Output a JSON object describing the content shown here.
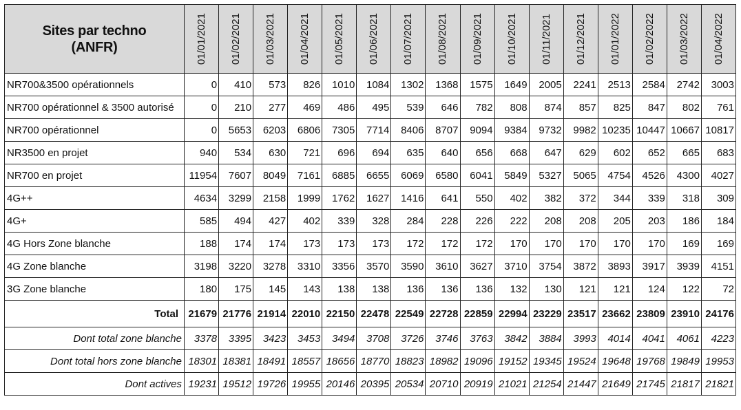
{
  "table": {
    "title": "Sites par techno\n(ANFR)",
    "columns": [
      "01/01/2021",
      "01/02/2021",
      "01/03/2021",
      "01/04/2021",
      "01/05/2021",
      "01/06/2021",
      "01/07/2021",
      "01/08/2021",
      "01/09/2021",
      "01/10/2021",
      "01/11/2021",
      "01/12/2021",
      "01/01/2022",
      "01/02/2022",
      "01/03/2022",
      "01/04/2022"
    ],
    "rows": [
      {
        "label": "NR700&3500 opérationnels",
        "values": [
          0,
          410,
          573,
          826,
          1010,
          1084,
          1302,
          1368,
          1575,
          1649,
          2005,
          2241,
          2513,
          2584,
          2742,
          3003
        ]
      },
      {
        "label": "NR700 opérationnel & 3500 autorisé",
        "values": [
          0,
          210,
          277,
          469,
          486,
          495,
          539,
          646,
          782,
          808,
          874,
          857,
          825,
          847,
          802,
          761
        ]
      },
      {
        "label": "NR700 opérationnel",
        "values": [
          0,
          5653,
          6203,
          6806,
          7305,
          7714,
          8406,
          8707,
          9094,
          9384,
          9732,
          9982,
          10235,
          10447,
          10667,
          10817
        ]
      },
      {
        "label": "NR3500 en projet",
        "values": [
          940,
          534,
          630,
          721,
          696,
          694,
          635,
          640,
          656,
          668,
          647,
          629,
          602,
          652,
          665,
          683
        ]
      },
      {
        "label": "NR700 en projet",
        "values": [
          11954,
          7607,
          8049,
          7161,
          6885,
          6655,
          6069,
          6580,
          6041,
          5849,
          5327,
          5065,
          4754,
          4526,
          4300,
          4027
        ]
      },
      {
        "label": "4G++",
        "values": [
          4634,
          3299,
          2158,
          1999,
          1762,
          1627,
          1416,
          641,
          550,
          402,
          382,
          372,
          344,
          339,
          318,
          309
        ]
      },
      {
        "label": "4G+",
        "values": [
          585,
          494,
          427,
          402,
          339,
          328,
          284,
          228,
          226,
          222,
          208,
          208,
          205,
          203,
          186,
          184
        ]
      },
      {
        "label": "4G Hors Zone blanche",
        "values": [
          188,
          174,
          174,
          173,
          173,
          173,
          172,
          172,
          172,
          170,
          170,
          170,
          170,
          170,
          169,
          169
        ]
      },
      {
        "label": "4G Zone blanche",
        "values": [
          3198,
          3220,
          3278,
          3310,
          3356,
          3570,
          3590,
          3610,
          3627,
          3710,
          3754,
          3872,
          3893,
          3917,
          3939,
          4151
        ]
      },
      {
        "label": "3G Zone blanche",
        "values": [
          180,
          175,
          145,
          143,
          138,
          138,
          136,
          136,
          136,
          132,
          130,
          121,
          121,
          124,
          122,
          72
        ]
      },
      {
        "label": "Total",
        "values": [
          21679,
          21776,
          21914,
          22010,
          22150,
          22478,
          22549,
          22728,
          22859,
          22994,
          23229,
          23517,
          23662,
          23809,
          23910,
          24176
        ]
      },
      {
        "label": "Dont total zone blanche",
        "values": [
          3378,
          3395,
          3423,
          3453,
          3494,
          3708,
          3726,
          3746,
          3763,
          3842,
          3884,
          3993,
          4014,
          4041,
          4061,
          4223
        ]
      },
      {
        "label": "Dont total hors zone blanche",
        "values": [
          18301,
          18381,
          18491,
          18557,
          18656,
          18770,
          18823,
          18982,
          19096,
          19152,
          19345,
          19524,
          19648,
          19768,
          19849,
          19953
        ]
      },
      {
        "label": "Dont actives",
        "values": [
          19231,
          19512,
          19726,
          19955,
          20146,
          20395,
          20534,
          20710,
          20919,
          21021,
          21254,
          21447,
          21649,
          21745,
          21817,
          21821
        ]
      }
    ]
  }
}
